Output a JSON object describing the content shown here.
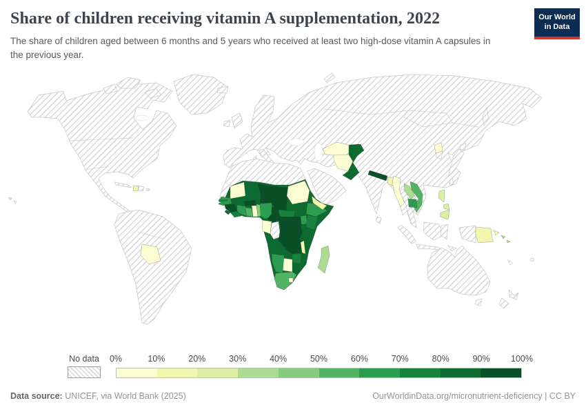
{
  "header": {
    "title": "Share of children receiving vitamin A supplementation, 2022",
    "subtitle": "The share of children aged between 6 months and 5 years who received at least two high-dose vitamin A capsules in the previous year.",
    "logo": {
      "line1": "Our World",
      "line2": "in Data",
      "bg_color": "#0d2c52",
      "accent_color": "#d0372f"
    }
  },
  "legend": {
    "no_data_label": "No data",
    "tick_labels": [
      "0%",
      "10%",
      "20%",
      "30%",
      "40%",
      "50%",
      "60%",
      "70%",
      "80%",
      "90%",
      "100%"
    ],
    "bin_colors": [
      "#fcfdd2",
      "#f1f7ae",
      "#dcf0a5",
      "#abdc91",
      "#86cc80",
      "#52b365",
      "#2d9c50",
      "#17823d",
      "#0d6b32",
      "#094f28"
    ]
  },
  "footer": {
    "source_label": "Data source:",
    "source_text": " UNICEF, via World Bank (2025)",
    "url_text": "OurWorldinData.org/micronutrient-deficiency | CC BY"
  },
  "chart_data": {
    "type": "heatmap",
    "subtype": "choropleth-world-map",
    "title": "Share of children receiving vitamin A supplementation, 2022",
    "unit": "%",
    "legend_bins": [
      "0-10%",
      "10-20%",
      "20-30%",
      "30-40%",
      "40-50%",
      "50-60%",
      "60-70%",
      "70-80%",
      "80-90%",
      "90-100%"
    ],
    "no_data_style": "gray diagonal hatch",
    "countries": [
      {
        "name": "Bolivia",
        "range": "0-10%"
      },
      {
        "name": "Haiti",
        "range": "10-20%"
      },
      {
        "name": "Mauritania",
        "range": "0-10%"
      },
      {
        "name": "Senegal",
        "range": "60-70%"
      },
      {
        "name": "Gambia",
        "range": "70-80%"
      },
      {
        "name": "Guinea-Bissau",
        "range": "60-70%"
      },
      {
        "name": "Guinea",
        "range": "90-100%"
      },
      {
        "name": "Sierra Leone",
        "range": "80-90%"
      },
      {
        "name": "Liberia",
        "range": "70-80%"
      },
      {
        "name": "Cote d'Ivoire",
        "range": "60-70%"
      },
      {
        "name": "Ghana",
        "range": "50-60%"
      },
      {
        "name": "Togo",
        "range": "0-10%"
      },
      {
        "name": "Benin",
        "range": "40-50%"
      },
      {
        "name": "Burkina Faso",
        "range": "90-100%"
      },
      {
        "name": "Mali",
        "range": "80-90%"
      },
      {
        "name": "Niger",
        "range": "90-100%"
      },
      {
        "name": "Nigeria",
        "range": "60-70%"
      },
      {
        "name": "Chad",
        "range": "90-100%"
      },
      {
        "name": "Cameroon",
        "range": "90-100%"
      },
      {
        "name": "Central African Republic",
        "range": "70-80%"
      },
      {
        "name": "Sudan",
        "range": "0-10%"
      },
      {
        "name": "South Sudan",
        "range": "80-90%"
      },
      {
        "name": "Eritrea",
        "range": "80-90%"
      },
      {
        "name": "Ethiopia",
        "range": "60-70%"
      },
      {
        "name": "Somalia",
        "range": "80-90%"
      },
      {
        "name": "Uganda",
        "range": "60-70%"
      },
      {
        "name": "Kenya",
        "range": "70-80%"
      },
      {
        "name": "Rwanda",
        "range": "60-70%"
      },
      {
        "name": "Tanzania",
        "range": "80-90%"
      },
      {
        "name": "Democratic Republic of Congo",
        "range": "90-100%"
      },
      {
        "name": "Congo",
        "range": "No data"
      },
      {
        "name": "Gabon",
        "range": "0-10%"
      },
      {
        "name": "Angola",
        "range": "80-90%"
      },
      {
        "name": "Zambia",
        "range": "90-100%"
      },
      {
        "name": "Malawi",
        "range": "10-20%"
      },
      {
        "name": "Mozambique",
        "range": "80-90%"
      },
      {
        "name": "Zimbabwe",
        "range": "70-80%"
      },
      {
        "name": "Botswana",
        "range": "0-10%"
      },
      {
        "name": "Namibia",
        "range": "50-60%"
      },
      {
        "name": "South Africa",
        "range": "40-50%"
      },
      {
        "name": "Lesotho",
        "range": "0-10%"
      },
      {
        "name": "Madagascar",
        "range": "30-40%"
      },
      {
        "name": "Yemen",
        "range": "10-20%"
      },
      {
        "name": "Turkmenistan",
        "range": "0-10%"
      },
      {
        "name": "Uzbekistan",
        "range": "0-10%"
      },
      {
        "name": "Tajikistan",
        "range": "80-90%"
      },
      {
        "name": "Afghanistan",
        "range": "0-10%"
      },
      {
        "name": "Pakistan",
        "range": "80-90%"
      },
      {
        "name": "Nepal",
        "range": "90-100%"
      },
      {
        "name": "Bangladesh",
        "range": "10-20%"
      },
      {
        "name": "Myanmar",
        "range": "0-10%"
      },
      {
        "name": "Laos",
        "range": "30-40%"
      },
      {
        "name": "Vietnam",
        "range": "50-60%"
      },
      {
        "name": "Cambodia",
        "range": "60-70%"
      },
      {
        "name": "North Korea",
        "range": "0-10%"
      },
      {
        "name": "Philippines",
        "range": "20-30%"
      },
      {
        "name": "Papua New Guinea",
        "range": "10-20%"
      },
      {
        "name": "Solomon Islands",
        "range": "30-40%"
      }
    ]
  }
}
